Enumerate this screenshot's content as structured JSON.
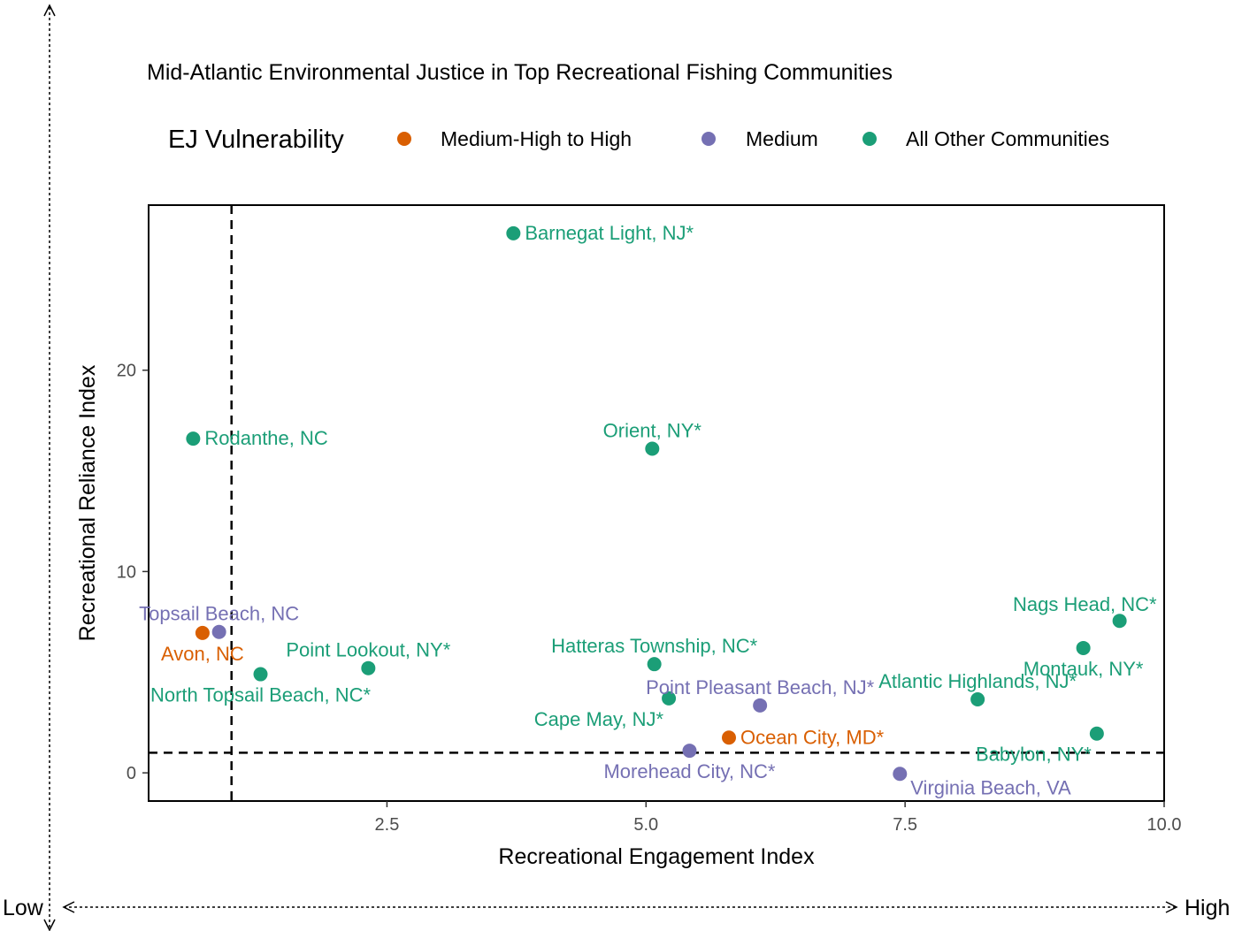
{
  "chart_data": {
    "type": "scatter",
    "title": "Mid-Atlantic Environmental Justice in Top Recreational Fishing Communities",
    "xlabel": "Recreational Engagement Index",
    "ylabel": "Recreational Reliance Index",
    "xlim": [
      0.2,
      10.0
    ],
    "ylim": [
      -1.4,
      28.2
    ],
    "x_ticks": [
      2.5,
      5.0,
      7.5,
      10.0
    ],
    "x_tick_labels": [
      "2.5",
      "5.0",
      "7.5",
      "10.0"
    ],
    "y_ticks": [
      0,
      10,
      20
    ],
    "y_tick_labels": [
      "0",
      "10",
      "20"
    ],
    "reference_lines": {
      "vertical_x": 1.0,
      "horizontal_y": 1.0,
      "style": "dashed"
    },
    "legend": {
      "title": "EJ Vulnerability",
      "placement": "top",
      "entries": [
        {
          "name": "Medium-High to High",
          "color": "#d95f02"
        },
        {
          "name": "Medium",
          "color": "#7570b3"
        },
        {
          "name": "All Other Communities",
          "color": "#1b9e77"
        }
      ]
    },
    "grid": false,
    "points": [
      {
        "label": "Barnegat Light, NJ*",
        "x": 3.72,
        "y": 26.8,
        "group": "All Other Communities",
        "label_pos": "right"
      },
      {
        "label": "Rodanthe, NC",
        "x": 0.63,
        "y": 16.6,
        "group": "All Other Communities",
        "label_pos": "right"
      },
      {
        "label": "Orient, NY*",
        "x": 5.06,
        "y": 16.1,
        "group": "All Other Communities",
        "label_pos": "above"
      },
      {
        "label": "Topsail Beach, NC",
        "x": 0.88,
        "y": 7.0,
        "group": "Medium",
        "label_pos": "above"
      },
      {
        "label": "Avon, NC",
        "x": 0.72,
        "y": 6.95,
        "group": "Medium-High to High",
        "label_pos": "below"
      },
      {
        "label": "North Topsail Beach, NC*",
        "x": 1.28,
        "y": 4.9,
        "group": "All Other Communities",
        "label_pos": "below"
      },
      {
        "label": "Point Lookout, NY*",
        "x": 2.32,
        "y": 5.2,
        "group": "All Other Communities",
        "label_pos": "above"
      },
      {
        "label": "Hatteras Township, NC*",
        "x": 5.08,
        "y": 5.4,
        "group": "All Other Communities",
        "label_pos": "above"
      },
      {
        "label": "Cape May, NJ*",
        "x": 5.22,
        "y": 3.7,
        "group": "All Other Communities",
        "label_pos": "below-left"
      },
      {
        "label": "Point Pleasant Beach, NJ*",
        "x": 6.1,
        "y": 3.35,
        "group": "Medium",
        "label_pos": "above"
      },
      {
        "label": "Ocean City, MD*",
        "x": 5.8,
        "y": 1.75,
        "group": "Medium-High to High",
        "label_pos": "right"
      },
      {
        "label": "Morehead City, NC*",
        "x": 5.42,
        "y": 1.1,
        "group": "Medium",
        "label_pos": "below"
      },
      {
        "label": "Virginia Beach, VA",
        "x": 7.45,
        "y": -0.05,
        "group": "Medium",
        "label_pos": "below-right"
      },
      {
        "label": "Atlantic Highlands, NJ*",
        "x": 8.2,
        "y": 3.65,
        "group": "All Other Communities",
        "label_pos": "above"
      },
      {
        "label": "Nags Head, NC*",
        "x": 9.57,
        "y": 7.55,
        "group": "All Other Communities",
        "label_pos": "above-left"
      },
      {
        "label": "Montauk, NY*",
        "x": 9.22,
        "y": 6.2,
        "group": "All Other Communities",
        "label_pos": "below"
      },
      {
        "label": "Babylon, NY*",
        "x": 9.35,
        "y": 1.95,
        "group": "All Other Communities",
        "label_pos": "below-left"
      }
    ],
    "outer_axes": {
      "horizontal_low": "Low",
      "horizontal_high": "High"
    }
  }
}
